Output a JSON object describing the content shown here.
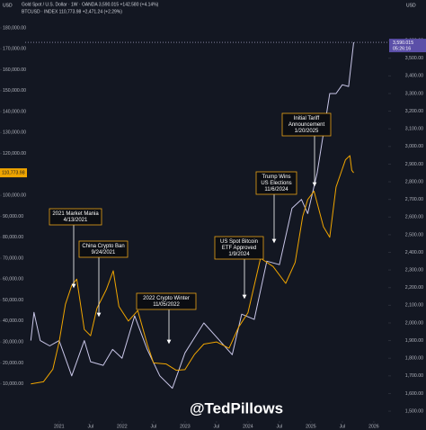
{
  "chart_data": {
    "type": "line",
    "header": [
      "Gold Spot / U.S. Dollar · 1W · OANDA  3,590.015  +142.580 (+4.14%)",
      "BTCUSD · INDEX  110,773.98  +2,471.24 (+2.29%)"
    ],
    "currency_left": "USD",
    "currency_right": "USD",
    "watermark": "@TedPillows",
    "xlim": [
      2020.46,
      2026.23
    ],
    "xticks": [
      {
        "value": 2021,
        "label": "2021"
      },
      {
        "value": 2021.5,
        "label": "Jul"
      },
      {
        "value": 2022,
        "label": "2022"
      },
      {
        "value": 2022.5,
        "label": "Jul"
      },
      {
        "value": 2023,
        "label": "2023"
      },
      {
        "value": 2023.5,
        "label": "Jul"
      },
      {
        "value": 2024,
        "label": "2024"
      },
      {
        "value": 2024.5,
        "label": "Jul"
      },
      {
        "value": 2025,
        "label": "2025"
      },
      {
        "value": 2025.5,
        "label": "Jul"
      },
      {
        "value": 2026,
        "label": "2026"
      }
    ],
    "ylim": [
      -8600,
      193300
    ],
    "yticks": [
      {
        "value": 10000,
        "label": "10,000.00"
      },
      {
        "value": 20000,
        "label": "20,000.00"
      },
      {
        "value": 30000,
        "label": "30,000.00"
      },
      {
        "value": 40000,
        "label": "40,000.00"
      },
      {
        "value": 50000,
        "label": "50,000.00"
      },
      {
        "value": 60000,
        "label": "60,000.00"
      },
      {
        "value": 70000,
        "label": "70,000.00"
      },
      {
        "value": 80000,
        "label": "80,000.00"
      },
      {
        "value": 90000,
        "label": "90,000.00"
      },
      {
        "value": 100000,
        "label": "100,000.00"
      },
      {
        "value": 120000,
        "label": "120,000.00"
      },
      {
        "value": 130000,
        "label": "130,000.00"
      },
      {
        "value": 140000,
        "label": "140,000.00"
      },
      {
        "value": 150000,
        "label": "150,000.00"
      },
      {
        "value": 160000,
        "label": "160,000.00"
      },
      {
        "value": 170000,
        "label": "170,000.00"
      },
      {
        "value": 180000,
        "label": "180,000.00"
      }
    ],
    "y2lim": [
      1434,
      3830
    ],
    "y2ticks": [
      {
        "value": 1500,
        "label": "1,500.00"
      },
      {
        "value": 1600,
        "label": "1,600.00"
      },
      {
        "value": 1700,
        "label": "1,700.00"
      },
      {
        "value": 1800,
        "label": "1,800.00"
      },
      {
        "value": 1900,
        "label": "1,900.00"
      },
      {
        "value": 2000,
        "label": "2,000.00"
      },
      {
        "value": 2100,
        "label": "2,100.00"
      },
      {
        "value": 2200,
        "label": "2,200.00"
      },
      {
        "value": 2300,
        "label": "2,300.00"
      },
      {
        "value": 2400,
        "label": "2,400.00"
      },
      {
        "value": 2500,
        "label": "2,500.00"
      },
      {
        "value": 2600,
        "label": "2,600.00"
      },
      {
        "value": 2700,
        "label": "2,700.00"
      },
      {
        "value": 2800,
        "label": "2,800.00"
      },
      {
        "value": 2900,
        "label": "2,900.00"
      },
      {
        "value": 3000,
        "label": "3,000.00"
      },
      {
        "value": 3100,
        "label": "3,100.00"
      },
      {
        "value": 3200,
        "label": "3,200.00"
      },
      {
        "value": 3300,
        "label": "3,300.00"
      },
      {
        "value": 3400,
        "label": "3,400.00"
      },
      {
        "value": 3500,
        "label": "3,500.00"
      },
      {
        "value": 3600,
        "label": "3,600.00"
      }
    ],
    "grid": false,
    "series": [
      {
        "name": "Gold Spot / U.S. Dollar",
        "color": "#c9c6e8",
        "axis": "y2",
        "x": [
          2020.55,
          2020.6,
          2020.7,
          2020.85,
          2021.0,
          2021.2,
          2021.4,
          2021.5,
          2021.7,
          2021.85,
          2022.0,
          2022.2,
          2022.4,
          2022.6,
          2022.8,
          2023.0,
          2023.3,
          2023.5,
          2023.75,
          2023.9,
          2024.1,
          2024.3,
          2024.5,
          2024.7,
          2024.85,
          2024.95,
          2025.1,
          2025.3,
          2025.4,
          2025.5,
          2025.6,
          2025.68
        ],
        "values": [
          1900,
          2060,
          1900,
          1870,
          1900,
          1700,
          1900,
          1780,
          1760,
          1850,
          1800,
          2040,
          1850,
          1700,
          1630,
          1830,
          2000,
          1920,
          1820,
          2050,
          2020,
          2350,
          2330,
          2650,
          2700,
          2620,
          2850,
          3300,
          3300,
          3350,
          3340,
          3590.015
        ],
        "price_label": {
          "value": 3590.015,
          "label": "3,590.015"
        },
        "countdown": "05:26:16"
      },
      {
        "name": "BTCUSD",
        "color": "#f0a500",
        "axis": "y",
        "x": [
          2020.55,
          2020.75,
          2020.9,
          2021.0,
          2021.1,
          2021.2,
          2021.28,
          2021.4,
          2021.5,
          2021.6,
          2021.75,
          2021.86,
          2021.95,
          2022.1,
          2022.25,
          2022.4,
          2022.5,
          2022.7,
          2022.86,
          2023.0,
          2023.15,
          2023.3,
          2023.5,
          2023.7,
          2023.85,
          2024.0,
          2024.2,
          2024.4,
          2024.6,
          2024.75,
          2024.87,
          2024.95,
          2025.05,
          2025.2,
          2025.3,
          2025.4,
          2025.55,
          2025.62,
          2025.65,
          2025.68
        ],
        "values": [
          10000,
          11000,
          17000,
          30000,
          48000,
          57000,
          60000,
          36000,
          33000,
          46000,
          55000,
          64000,
          47000,
          40000,
          45000,
          29000,
          20000,
          19500,
          16500,
          16800,
          24000,
          29000,
          30000,
          27000,
          37000,
          44000,
          70000,
          66000,
          58000,
          68000,
          90000,
          98000,
          102000,
          85000,
          80000,
          104000,
          117000,
          119000,
          112000,
          110773.98
        ],
        "price_label": {
          "value": 110773.98,
          "label": "110,773.98"
        }
      }
    ],
    "annotations": [
      {
        "lines": [
          "2021 Market Mania",
          "4/13/2021"
        ]
      },
      {
        "lines": [
          "China Crypto Ban",
          "9/24/2021"
        ]
      },
      {
        "lines": [
          "2022 Crypto Winter",
          "11/05/2022"
        ]
      },
      {
        "lines": [
          "US Spot Bitcoin",
          "ETF Approved",
          "1/9/2024"
        ]
      },
      {
        "lines": [
          "Trump Wins",
          "US Elections",
          "11/6/2024"
        ]
      },
      {
        "lines": [
          "Initial Tariff",
          "Announcement",
          "1/20/2025"
        ]
      }
    ]
  }
}
